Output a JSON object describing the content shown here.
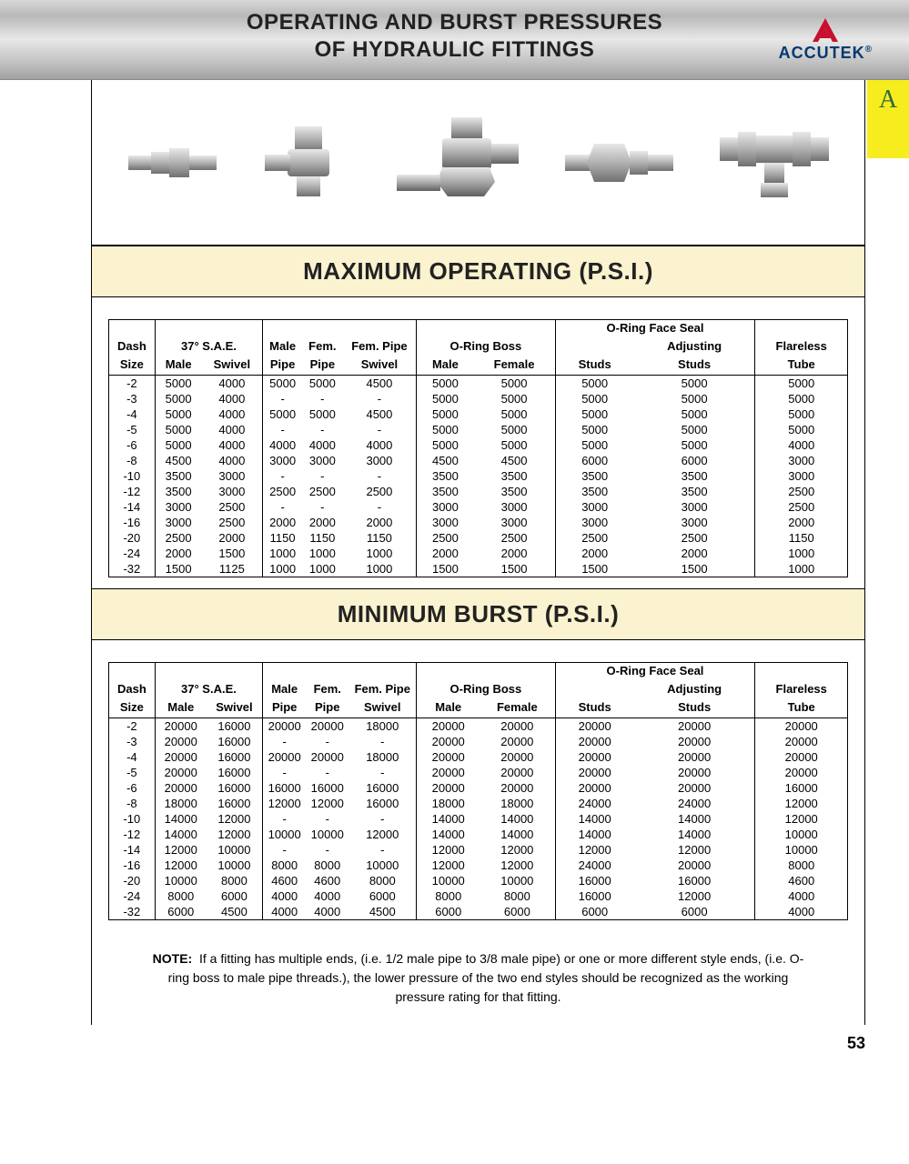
{
  "header": {
    "title_line1": "OPERATING AND BURST PRESSURES",
    "title_line2": "OF HYDRAULIC FITTINGS",
    "logo_text": "ACCUTEK",
    "logo_reg": "®",
    "logo_color_primary": "#003a70",
    "logo_color_accent": "#c8102e",
    "tab_letter": "A",
    "tab_bg": "#f7ec1e",
    "tab_text_color": "#2b6b3e"
  },
  "colors": {
    "band_bg": "#fbf2cf",
    "metal_light": "#d8d8d8",
    "metal_dark": "#8a8a8a"
  },
  "sections": [
    {
      "title": "MAXIMUM OPERATING (P.S.I.)",
      "data_key": "operating"
    },
    {
      "title": "MINIMUM BURST (P.S.I.)",
      "data_key": "burst"
    }
  ],
  "column_groups": {
    "dash": {
      "label": "Dash",
      "sub": "Size"
    },
    "sae": {
      "label": "37° S.A.E.",
      "cols": [
        "Male",
        "Swivel"
      ]
    },
    "pipe": {
      "cols": [
        "Male Pipe",
        "Fem. Pipe",
        "Fem. Pipe Swivel"
      ],
      "head_row1": [
        "Male",
        "Fem.",
        "Fem. Pipe"
      ],
      "head_row2": [
        "Pipe",
        "Pipe",
        "Swivel"
      ]
    },
    "oring_boss": {
      "label": "O-Ring Boss",
      "cols": [
        "Male",
        "Female"
      ]
    },
    "oring_face": {
      "label": "O-Ring Face Seal",
      "head_row1": [
        "",
        "Adjusting"
      ],
      "head_row2": [
        "Studs",
        "Studs"
      ]
    },
    "flareless": {
      "label": "Flareless",
      "sub": "Tube"
    }
  },
  "dash_sizes": [
    "-2",
    "-3",
    "-4",
    "-5",
    "-6",
    "-8",
    "-10",
    "-12",
    "-14",
    "-16",
    "-20",
    "-24",
    "-32"
  ],
  "operating": [
    [
      "5000",
      "4000",
      "5000",
      "5000",
      "4500",
      "5000",
      "5000",
      "5000",
      "5000",
      "5000"
    ],
    [
      "5000",
      "4000",
      "-",
      "-",
      "-",
      "5000",
      "5000",
      "5000",
      "5000",
      "5000"
    ],
    [
      "5000",
      "4000",
      "5000",
      "5000",
      "4500",
      "5000",
      "5000",
      "5000",
      "5000",
      "5000"
    ],
    [
      "5000",
      "4000",
      "-",
      "-",
      "-",
      "5000",
      "5000",
      "5000",
      "5000",
      "5000"
    ],
    [
      "5000",
      "4000",
      "4000",
      "4000",
      "4000",
      "5000",
      "5000",
      "5000",
      "5000",
      "4000"
    ],
    [
      "4500",
      "4000",
      "3000",
      "3000",
      "3000",
      "4500",
      "4500",
      "6000",
      "6000",
      "3000"
    ],
    [
      "3500",
      "3000",
      "-",
      "-",
      "-",
      "3500",
      "3500",
      "3500",
      "3500",
      "3000"
    ],
    [
      "3500",
      "3000",
      "2500",
      "2500",
      "2500",
      "3500",
      "3500",
      "3500",
      "3500",
      "2500"
    ],
    [
      "3000",
      "2500",
      "-",
      "-",
      "-",
      "3000",
      "3000",
      "3000",
      "3000",
      "2500"
    ],
    [
      "3000",
      "2500",
      "2000",
      "2000",
      "2000",
      "3000",
      "3000",
      "3000",
      "3000",
      "2000"
    ],
    [
      "2500",
      "2000",
      "1150",
      "1150",
      "1150",
      "2500",
      "2500",
      "2500",
      "2500",
      "1150"
    ],
    [
      "2000",
      "1500",
      "1000",
      "1000",
      "1000",
      "2000",
      "2000",
      "2000",
      "2000",
      "1000"
    ],
    [
      "1500",
      "1125",
      "1000",
      "1000",
      "1000",
      "1500",
      "1500",
      "1500",
      "1500",
      "1000"
    ]
  ],
  "burst": [
    [
      "20000",
      "16000",
      "20000",
      "20000",
      "18000",
      "20000",
      "20000",
      "20000",
      "20000",
      "20000"
    ],
    [
      "20000",
      "16000",
      "-",
      "-",
      "-",
      "20000",
      "20000",
      "20000",
      "20000",
      "20000"
    ],
    [
      "20000",
      "16000",
      "20000",
      "20000",
      "18000",
      "20000",
      "20000",
      "20000",
      "20000",
      "20000"
    ],
    [
      "20000",
      "16000",
      "-",
      "-",
      "-",
      "20000",
      "20000",
      "20000",
      "20000",
      "20000"
    ],
    [
      "20000",
      "16000",
      "16000",
      "16000",
      "16000",
      "20000",
      "20000",
      "20000",
      "20000",
      "16000"
    ],
    [
      "18000",
      "16000",
      "12000",
      "12000",
      "16000",
      "18000",
      "18000",
      "24000",
      "24000",
      "12000"
    ],
    [
      "14000",
      "12000",
      "-",
      "-",
      "-",
      "14000",
      "14000",
      "14000",
      "14000",
      "12000"
    ],
    [
      "14000",
      "12000",
      "10000",
      "10000",
      "12000",
      "14000",
      "14000",
      "14000",
      "14000",
      "10000"
    ],
    [
      "12000",
      "10000",
      "-",
      "-",
      "-",
      "12000",
      "12000",
      "12000",
      "12000",
      "10000"
    ],
    [
      "12000",
      "10000",
      "8000",
      "8000",
      "10000",
      "12000",
      "12000",
      "24000",
      "20000",
      "8000"
    ],
    [
      "10000",
      "8000",
      "4600",
      "4600",
      "8000",
      "10000",
      "10000",
      "16000",
      "16000",
      "4600"
    ],
    [
      "8000",
      "6000",
      "4000",
      "4000",
      "6000",
      "8000",
      "8000",
      "16000",
      "12000",
      "4000"
    ],
    [
      "6000",
      "4500",
      "4000",
      "4000",
      "4500",
      "6000",
      "6000",
      "6000",
      "6000",
      "4000"
    ]
  ],
  "note": {
    "label": "NOTE:",
    "text": "If a fitting has multiple ends, (i.e. 1/2 male pipe to 3/8 male pipe) or one or more different style ends, (i.e. O-ring boss to male pipe threads.), the lower pressure of the two end styles should be recognized as the working pressure rating for that fitting."
  },
  "page_number": "53"
}
